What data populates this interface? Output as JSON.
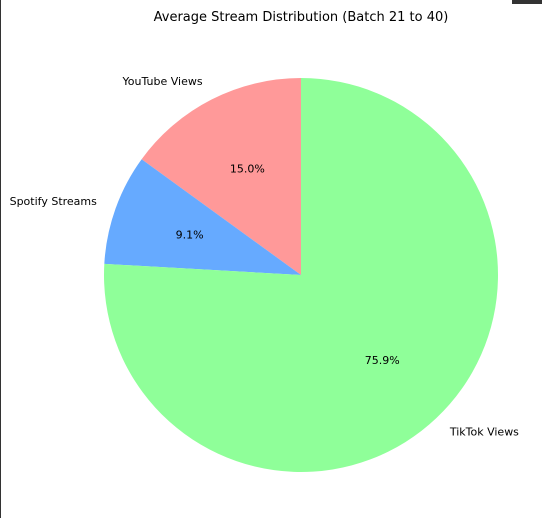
{
  "chart_data": {
    "type": "pie",
    "title": "Average Stream Distribution (Batch 21 to 40)",
    "slices": [
      {
        "label": "YouTube Views",
        "value": 15.0,
        "pct_label": "15.0%",
        "color": "#ff9999"
      },
      {
        "label": "Spotify Streams",
        "value": 9.1,
        "pct_label": "9.1%",
        "color": "#66aaff"
      },
      {
        "label": "TikTok Views",
        "value": 75.9,
        "pct_label": "75.9%",
        "color": "#8fff99"
      }
    ],
    "start_angle_deg": 90,
    "direction": "counterclockwise",
    "legend": "none"
  }
}
